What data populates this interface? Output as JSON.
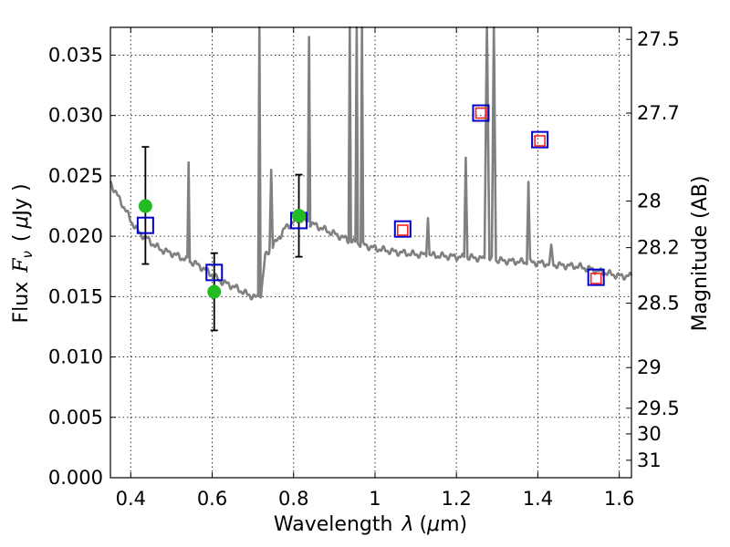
{
  "chart_data": {
    "type": "scatter",
    "xlabel_main": "Wavelength",
    "xlabel_symbol": "λ",
    "xlabel_unit_open": "(",
    "xlabel_unit_mu": "μ",
    "xlabel_unit_rest": "m)",
    "ylabel_main": "Flux",
    "ylabel_symbol_F": "F",
    "ylabel_symbol_nu": "ν",
    "ylabel_unit_open": "(",
    "ylabel_unit_mu": "μ",
    "ylabel_unit_rest": "Jy )",
    "y2label": "Magnitude (AB)",
    "xlim": [
      0.35,
      1.63
    ],
    "ylim": [
      0.0,
      0.0373
    ],
    "xticks": [
      {
        "value": 0.4,
        "label": "0.4"
      },
      {
        "value": 0.6,
        "label": "0.6"
      },
      {
        "value": 0.8,
        "label": "0.8"
      },
      {
        "value": 1.0,
        "label": "1"
      },
      {
        "value": 1.2,
        "label": "1.2"
      },
      {
        "value": 1.4,
        "label": "1.4"
      },
      {
        "value": 1.6,
        "label": "1.6"
      }
    ],
    "yticks": [
      {
        "value": 0.0,
        "label": "0.000"
      },
      {
        "value": 0.005,
        "label": "0.005"
      },
      {
        "value": 0.01,
        "label": "0.010"
      },
      {
        "value": 0.015,
        "label": "0.015"
      },
      {
        "value": 0.02,
        "label": "0.020"
      },
      {
        "value": 0.025,
        "label": "0.025"
      },
      {
        "value": 0.03,
        "label": "0.030"
      },
      {
        "value": 0.035,
        "label": "0.035"
      }
    ],
    "magnitude_ticks": [
      {
        "label": "27.5",
        "value": 27.5
      },
      {
        "label": "27.7",
        "value": 27.7
      },
      {
        "label": "28",
        "value": 28.0
      },
      {
        "label": "28.2",
        "value": 28.2
      },
      {
        "label": "28.5",
        "value": 28.5
      },
      {
        "label": "29",
        "value": 29.0
      },
      {
        "label": "29.5",
        "value": 29.5
      },
      {
        "label": "30",
        "value": 30.0
      },
      {
        "label": "31",
        "value": 31.0
      }
    ],
    "grid": true,
    "colors": {
      "model_spectrum": "#808080",
      "model_photometry_box": "#0000cc",
      "observed_flux_box": "#ff2020",
      "green_points": "#22bb22",
      "error_bars": "#000000"
    },
    "model_spectrum": {
      "continuum": [
        [
          0.35,
          0.0245
        ],
        [
          0.36,
          0.0238
        ],
        [
          0.37,
          0.0232
        ],
        [
          0.38,
          0.0226
        ],
        [
          0.39,
          0.022
        ],
        [
          0.4,
          0.0213
        ],
        [
          0.42,
          0.0203
        ],
        [
          0.44,
          0.0198
        ],
        [
          0.46,
          0.0192
        ],
        [
          0.48,
          0.0188
        ],
        [
          0.5,
          0.0186
        ],
        [
          0.52,
          0.0183
        ],
        [
          0.54,
          0.018
        ],
        [
          0.56,
          0.0177
        ],
        [
          0.58,
          0.0173
        ],
        [
          0.6,
          0.0168
        ],
        [
          0.62,
          0.0163
        ],
        [
          0.64,
          0.016
        ],
        [
          0.66,
          0.0157
        ],
        [
          0.68,
          0.0153
        ],
        [
          0.7,
          0.015
        ],
        [
          0.71,
          0.0149
        ],
        [
          0.72,
          0.0152
        ],
        [
          0.73,
          0.0183
        ],
        [
          0.75,
          0.0192
        ],
        [
          0.78,
          0.0207
        ],
        [
          0.8,
          0.0212
        ],
        [
          0.82,
          0.0214
        ],
        [
          0.84,
          0.0211
        ],
        [
          0.86,
          0.0208
        ],
        [
          0.88,
          0.0205
        ],
        [
          0.9,
          0.0202
        ],
        [
          0.92,
          0.0199
        ],
        [
          0.94,
          0.0196
        ],
        [
          0.96,
          0.0194
        ],
        [
          0.98,
          0.0192
        ],
        [
          1.0,
          0.019
        ],
        [
          1.05,
          0.0187
        ],
        [
          1.1,
          0.0185
        ],
        [
          1.15,
          0.0184
        ],
        [
          1.2,
          0.0183
        ],
        [
          1.25,
          0.0182
        ],
        [
          1.3,
          0.018
        ],
        [
          1.35,
          0.0179
        ],
        [
          1.4,
          0.0178
        ],
        [
          1.45,
          0.0176
        ],
        [
          1.5,
          0.0175
        ],
        [
          1.55,
          0.0171
        ],
        [
          1.6,
          0.0167
        ],
        [
          1.63,
          0.0167
        ]
      ],
      "emission_lines": [
        {
          "wavelength": 0.542,
          "peak": 0.0261,
          "width": 0.003
        },
        {
          "wavelength": 0.716,
          "peak": 0.038,
          "width": 0.003
        },
        {
          "wavelength": 0.745,
          "peak": 0.0255,
          "width": 0.004
        },
        {
          "wavelength": 0.838,
          "peak": 0.0365,
          "width": 0.003
        },
        {
          "wavelength": 0.938,
          "peak": 0.038,
          "width": 0.003
        },
        {
          "wavelength": 0.955,
          "peak": 0.038,
          "width": 0.003
        },
        {
          "wavelength": 0.968,
          "peak": 0.038,
          "width": 0.003
        },
        {
          "wavelength": 1.13,
          "peak": 0.0215,
          "width": 0.004
        },
        {
          "wavelength": 1.223,
          "peak": 0.0265,
          "width": 0.004
        },
        {
          "wavelength": 1.275,
          "peak": 0.038,
          "width": 0.006
        },
        {
          "wavelength": 1.292,
          "peak": 0.038,
          "width": 0.005
        },
        {
          "wavelength": 1.377,
          "peak": 0.0245,
          "width": 0.004
        },
        {
          "wavelength": 1.433,
          "peak": 0.0193,
          "width": 0.005
        }
      ]
    },
    "model_photometry": [
      {
        "x": 0.436,
        "y": 0.0209
      },
      {
        "x": 0.605,
        "y": 0.017
      },
      {
        "x": 0.813,
        "y": 0.0213
      },
      {
        "x": 1.068,
        "y": 0.0206
      },
      {
        "x": 1.26,
        "y": 0.0302
      },
      {
        "x": 1.405,
        "y": 0.028
      },
      {
        "x": 1.543,
        "y": 0.0166
      }
    ],
    "observed_flux": [
      {
        "x": 1.068,
        "y": 0.0205
      },
      {
        "x": 1.26,
        "y": 0.0302
      },
      {
        "x": 1.405,
        "y": 0.0279
      },
      {
        "x": 1.543,
        "y": 0.0165
      }
    ],
    "observed_with_errors": [
      {
        "x": 0.436,
        "y": 0.0225,
        "err_low": 0.0177,
        "err_high": 0.0274
      },
      {
        "x": 0.605,
        "y": 0.0154,
        "err_low": 0.0122,
        "err_high": 0.0186
      },
      {
        "x": 0.813,
        "y": 0.0217,
        "err_low": 0.0183,
        "err_high": 0.0251
      }
    ]
  }
}
